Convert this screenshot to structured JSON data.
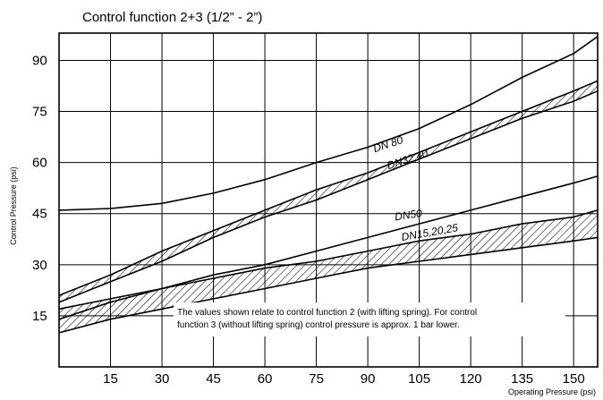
{
  "chart_data": {
    "type": "line",
    "title": "Control function 2+3 (1/2” - 2”)",
    "xlabel": "Operating Pressure (psi)",
    "ylabel": "Control Pressure (psi)",
    "xlim": [
      0,
      157
    ],
    "ylim": [
      0,
      98
    ],
    "xticks": [
      15,
      30,
      45,
      60,
      75,
      90,
      105,
      120,
      135,
      150
    ],
    "yticks": [
      15,
      30,
      45,
      60,
      75,
      90
    ],
    "grid": true,
    "note": [
      "The values shown relate to control function 2 (with lifting spring).  For control",
      "function 3 (without lifting spring) control pressure is approx. 1 bar lower."
    ],
    "series": [
      {
        "name": "DN 80",
        "type": "line",
        "x": [
          0,
          15,
          30,
          45,
          60,
          75,
          90,
          105,
          120,
          135,
          150,
          157
        ],
        "y": [
          46,
          46.5,
          48,
          51,
          55,
          60,
          64.5,
          70,
          77,
          85,
          92,
          97
        ]
      },
      {
        "name": "DN32,40",
        "type": "band",
        "x": [
          0,
          15,
          30,
          45,
          60,
          75,
          90,
          105,
          120,
          135,
          150,
          157
        ],
        "y_upper": [
          21,
          27,
          34,
          40,
          46,
          52,
          57,
          63,
          69,
          75,
          81,
          84
        ],
        "y_lower": [
          19,
          25,
          31,
          38,
          44,
          49,
          55,
          61,
          67,
          73,
          78,
          81
        ]
      },
      {
        "name": "DN50",
        "type": "line",
        "x": [
          0,
          15,
          30,
          45,
          60,
          75,
          90,
          105,
          120,
          135,
          150,
          157
        ],
        "y": [
          14,
          19,
          23,
          27,
          30,
          34,
          38,
          42,
          46,
          50,
          54,
          56
        ]
      },
      {
        "name": "DN15,20,25",
        "type": "band",
        "x": [
          0,
          15,
          30,
          45,
          60,
          75,
          90,
          105,
          120,
          135,
          150,
          157
        ],
        "y_upper": [
          17,
          20,
          23,
          26,
          29,
          31,
          34,
          37,
          39,
          42,
          44,
          46
        ],
        "y_lower": [
          10,
          14,
          17,
          20,
          23,
          26,
          29,
          31,
          33,
          35,
          37,
          38
        ]
      }
    ],
    "labels": [
      {
        "text": "DN 80",
        "x": 92,
        "y": 63,
        "angle": -18
      },
      {
        "text": "DN32,40",
        "x": 96,
        "y": 58,
        "angle": -18
      },
      {
        "text": "DN50",
        "x": 98,
        "y": 43,
        "angle": -8
      },
      {
        "text": "DN15,20,25",
        "x": 100,
        "y": 37,
        "angle": -10
      }
    ]
  }
}
